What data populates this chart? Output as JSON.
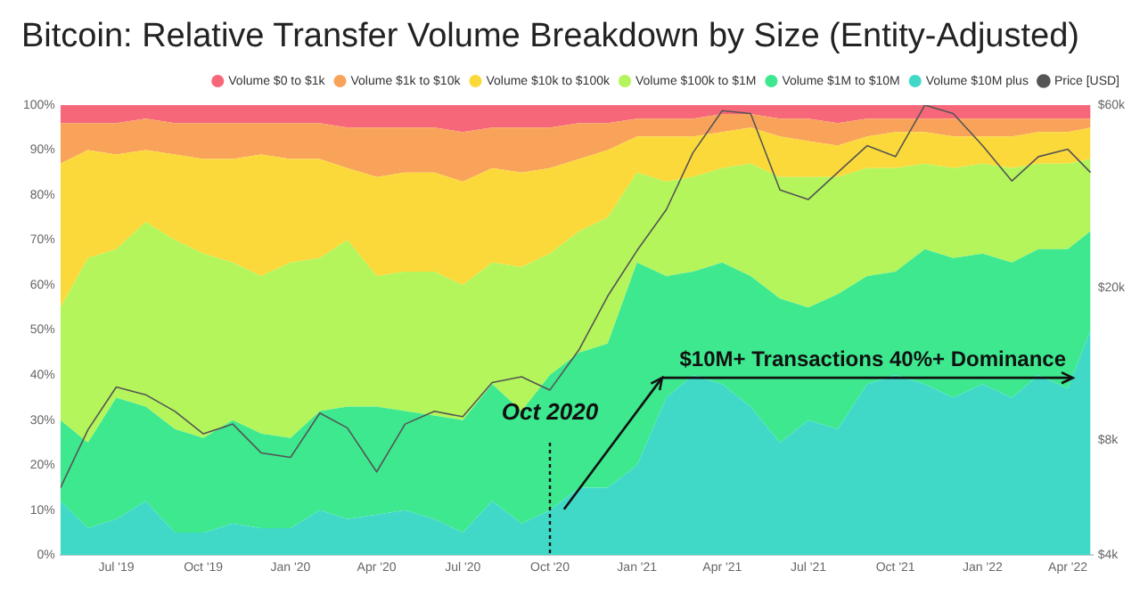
{
  "chart_data": {
    "type": "area",
    "title": "Bitcoin: Relative Transfer Volume Breakdown by Size (Entity-Adjusted)",
    "stacked": true,
    "legend": "top right",
    "grid": false,
    "marker": "none",
    "x": [
      "2019-05-03",
      "2019-06-01",
      "2019-07-01",
      "2019-08-01",
      "2019-09-01",
      "2019-10-01",
      "2019-11-01",
      "2019-12-01",
      "2020-01-01",
      "2020-02-01",
      "2020-03-01",
      "2020-04-01",
      "2020-05-01",
      "2020-06-01",
      "2020-07-01",
      "2020-08-01",
      "2020-09-01",
      "2020-10-01",
      "2020-11-01",
      "2020-12-01",
      "2021-01-01",
      "2021-02-01",
      "2021-03-01",
      "2021-04-01",
      "2021-05-01",
      "2021-06-01",
      "2021-07-01",
      "2021-08-01",
      "2021-09-01",
      "2021-10-01",
      "2021-11-01",
      "2021-12-01",
      "2022-01-01",
      "2022-02-01",
      "2022-03-01",
      "2022-04-01",
      "2022-04-25"
    ],
    "series": [
      {
        "name": "Price [USD]",
        "type": "line",
        "axis": "y2",
        "color": "#555555",
        "values": [
          6000,
          8500,
          11000,
          10500,
          9500,
          8300,
          8800,
          7400,
          7200,
          9400,
          8600,
          6600,
          8800,
          9500,
          9200,
          11300,
          11700,
          10800,
          13800,
          19000,
          25000,
          32000,
          45000,
          58000,
          57000,
          36000,
          34000,
          40000,
          47000,
          44000,
          60000,
          57000,
          47000,
          38000,
          44000,
          46000,
          40000
        ]
      },
      {
        "name": "Volume $10M plus",
        "color": "#40d9c8",
        "values": [
          12,
          6,
          8,
          12,
          5,
          5,
          7,
          6,
          6,
          10,
          8,
          9,
          10,
          8,
          5,
          12,
          7,
          10,
          15,
          15,
          20,
          35,
          40,
          38,
          33,
          25,
          30,
          28,
          38,
          40,
          38,
          35,
          38,
          35,
          40,
          37,
          50
        ]
      },
      {
        "name": "Volume $1M to $10M",
        "color": "#3de88e",
        "values": [
          18,
          19,
          27,
          21,
          23,
          21,
          23,
          21,
          20,
          22,
          25,
          24,
          22,
          23,
          25,
          26,
          25,
          30,
          30,
          32,
          45,
          27,
          23,
          27,
          29,
          32,
          25,
          30,
          24,
          23,
          30,
          31,
          29,
          30,
          28,
          31,
          22
        ]
      },
      {
        "name": "Volume $100k to $1M",
        "color": "#b3f55a",
        "values": [
          25,
          41,
          33,
          41,
          42,
          41,
          35,
          35,
          39,
          34,
          37,
          29,
          31,
          32,
          30,
          27,
          32,
          27,
          27,
          28,
          20,
          21,
          21,
          21,
          25,
          27,
          29,
          26,
          24,
          23,
          19,
          20,
          20,
          21,
          19,
          19,
          16
        ]
      },
      {
        "name": "Volume $10k to $100k",
        "color": "#fcd93a",
        "values": [
          32,
          24,
          21,
          16,
          19,
          21,
          23,
          27,
          23,
          22,
          16,
          22,
          22,
          22,
          23,
          21,
          21,
          19,
          16,
          15,
          8,
          10,
          9,
          8,
          8,
          9,
          8,
          7,
          7,
          8,
          7,
          7,
          6,
          7,
          7,
          7,
          7
        ]
      },
      {
        "name": "Volume $1k to $10k",
        "color": "#f9a35a",
        "values": [
          9,
          6,
          7,
          7,
          7,
          8,
          8,
          7,
          8,
          8,
          9,
          11,
          10,
          10,
          11,
          9,
          10,
          9,
          8,
          6,
          4,
          4,
          4,
          4,
          3,
          4,
          5,
          5,
          4,
          3,
          3,
          4,
          4,
          4,
          3,
          3,
          2
        ]
      },
      {
        "name": "Volume $0 to $1k",
        "color": "#f7677a",
        "values": [
          4,
          4,
          4,
          3,
          4,
          4,
          4,
          4,
          4,
          4,
          5,
          5,
          5,
          5,
          6,
          5,
          5,
          5,
          4,
          4,
          3,
          3,
          3,
          2,
          2,
          3,
          3,
          4,
          3,
          3,
          3,
          3,
          3,
          3,
          3,
          3,
          3
        ]
      }
    ],
    "xlim": [
      "2019-05-03",
      "2022-04-27"
    ],
    "xticks": [
      {
        "value": "2019-07-01",
        "label": "Jul '19"
      },
      {
        "value": "2019-10-01",
        "label": "Oct '19"
      },
      {
        "value": "2020-01-01",
        "label": "Jan '20"
      },
      {
        "value": "2020-04-01",
        "label": "Apr '20"
      },
      {
        "value": "2020-07-01",
        "label": "Jul '20"
      },
      {
        "value": "2020-10-01",
        "label": "Oct '20"
      },
      {
        "value": "2021-01-01",
        "label": "Jan '21"
      },
      {
        "value": "2021-04-01",
        "label": "Apr '21"
      },
      {
        "value": "2021-07-01",
        "label": "Jul '21"
      },
      {
        "value": "2021-10-01",
        "label": "Oct '21"
      },
      {
        "value": "2022-01-01",
        "label": "Jan '22"
      },
      {
        "value": "2022-04-01",
        "label": "Apr '22"
      }
    ],
    "ylim": [
      0,
      100
    ],
    "yticks": [
      {
        "value": 0,
        "label": "0%"
      },
      {
        "value": 10,
        "label": "10%"
      },
      {
        "value": 20,
        "label": "20%"
      },
      {
        "value": 30,
        "label": "30%"
      },
      {
        "value": 40,
        "label": "40%"
      },
      {
        "value": 50,
        "label": "50%"
      },
      {
        "value": 60,
        "label": "60%"
      },
      {
        "value": 70,
        "label": "70%"
      },
      {
        "value": 80,
        "label": "80%"
      },
      {
        "value": 90,
        "label": "90%"
      },
      {
        "value": 100,
        "label": "100%"
      }
    ],
    "log": "y2",
    "y2lim": [
      4000,
      60000
    ],
    "y2ticks": [
      {
        "value": 4000,
        "label": "$4k"
      },
      {
        "value": 8000,
        "label": "$8k"
      },
      {
        "value": 20000,
        "label": "$20k"
      },
      {
        "value": 60000,
        "label": "$60k"
      }
    ],
    "ref_lines": [
      {
        "axis": "x",
        "value": "2020-10-01",
        "label": "Oct 2020",
        "line_style": "dotted",
        "color": "#111111"
      }
    ],
    "annotations": [
      "$10M+ Transactions 40%+ Dominance"
    ]
  }
}
